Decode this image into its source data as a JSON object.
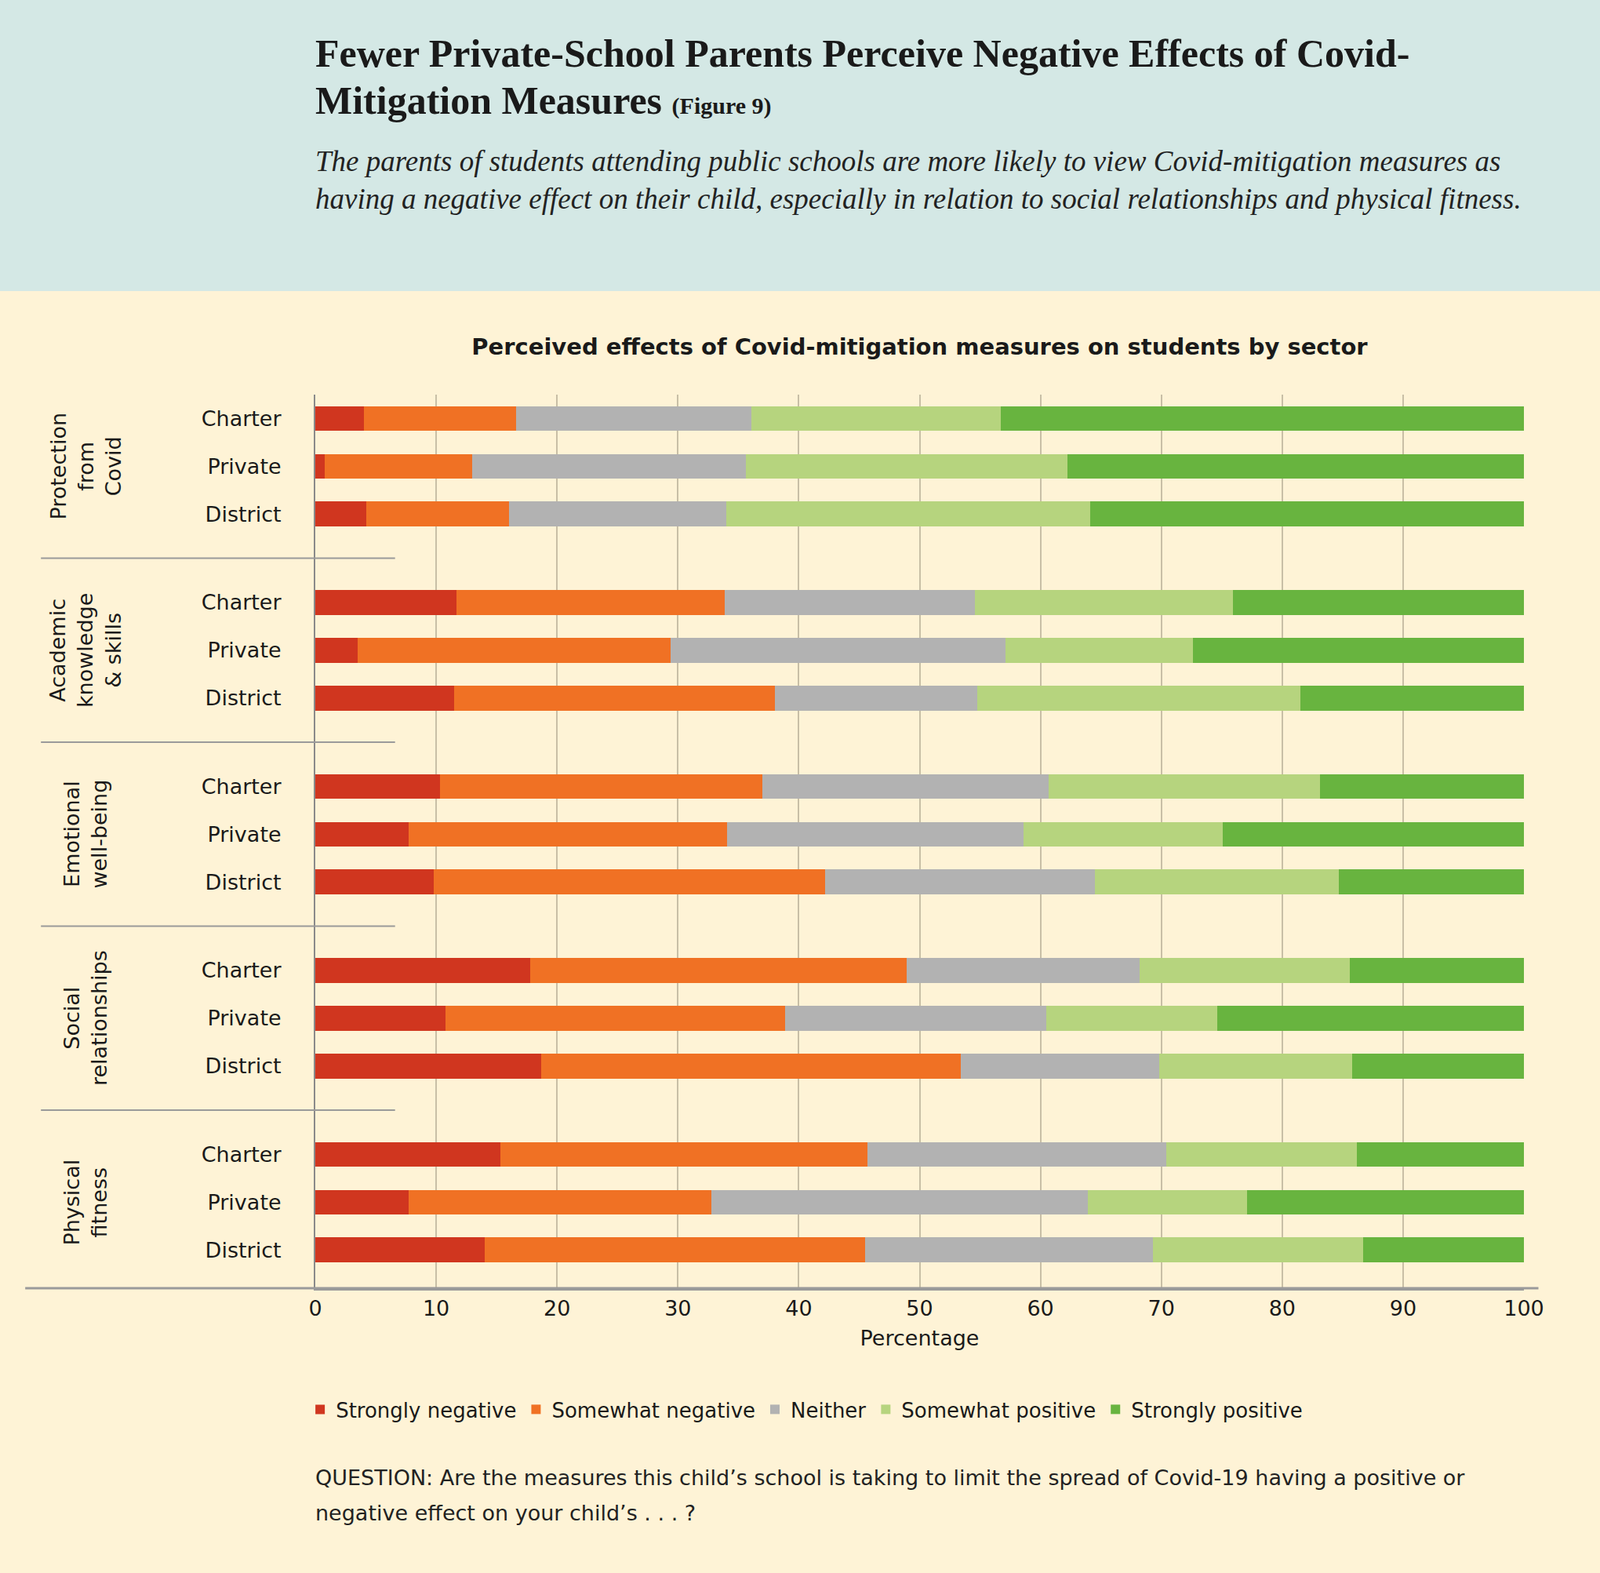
{
  "chart_data": {
    "type": "bar",
    "heading": "Fewer Private-School Parents Perceive Negative Effects of Covid-Mitigation Measures",
    "figure_label": "(Figure 9)",
    "subtitle": "The parents of students attending public schools are more likely to view Covid-mitigation measures as having a negative effect on their child, especially in relation to social relationships and physical fitness.",
    "title": "Perceived effects of Covid-mitigation measures on students by sector",
    "x_label": "Percentage",
    "note": "QUESTION: Are the measures this child’s school is taking to limit the spread of Covid-19 having a positive or negative effect on your child’s . . . ?",
    "orientation": "horizontal",
    "stacked": true,
    "grid": true,
    "legend": "bottom",
    "categories": [
      "Charter",
      "Private",
      "District",
      "Charter",
      "Private",
      "District",
      "Charter",
      "Private",
      "District",
      "Charter",
      "Private",
      "District",
      "Charter",
      "Private",
      "District"
    ],
    "category_groups": [
      "Protection from Covid",
      "Protection from Covid",
      "Protection from Covid",
      "Academic knowledge & skills",
      "Academic knowledge & skills",
      "Academic knowledge & skills",
      "Emotional well-being",
      "Emotional well-being",
      "Emotional well-being",
      "Social relationships",
      "Social relationships",
      "Social relationships",
      "Physical fitness",
      "Physical fitness",
      "Physical fitness"
    ],
    "series": [
      {
        "name": "Strongly negative",
        "color": "#d0361f",
        "values": [
          4.0,
          0.8,
          4.2,
          11.7,
          3.5,
          11.5,
          10.3,
          7.7,
          9.8,
          17.8,
          10.8,
          18.7,
          15.3,
          7.7,
          14.0
        ]
      },
      {
        "name": "Somewhat negative",
        "color": "#f07124",
        "values": [
          12.6,
          12.2,
          11.8,
          22.2,
          25.9,
          26.5,
          26.7,
          26.4,
          32.4,
          31.1,
          28.1,
          34.7,
          30.4,
          25.1,
          31.5
        ]
      },
      {
        "name": "Neither",
        "color": "#b2b2b2",
        "values": [
          19.5,
          22.6,
          18.0,
          20.7,
          27.7,
          16.8,
          23.7,
          24.5,
          22.3,
          19.3,
          21.6,
          16.4,
          24.7,
          31.1,
          23.8
        ]
      },
      {
        "name": "Somewhat positive",
        "color": "#b6d47e",
        "values": [
          20.6,
          26.6,
          30.1,
          21.3,
          15.5,
          26.7,
          22.4,
          16.5,
          20.2,
          17.4,
          14.1,
          16.0,
          15.8,
          13.2,
          17.4
        ]
      },
      {
        "name": "Strongly positive",
        "color": "#68b43f",
        "values": [
          43.3,
          37.8,
          35.9,
          24.1,
          27.4,
          18.5,
          16.9,
          24.9,
          15.3,
          14.4,
          25.4,
          14.2,
          13.8,
          22.9,
          13.3
        ]
      }
    ],
    "xlim": [
      0,
      100
    ],
    "xticks": [
      0,
      10,
      20,
      30,
      40,
      50,
      60,
      70,
      80,
      90,
      100
    ]
  }
}
